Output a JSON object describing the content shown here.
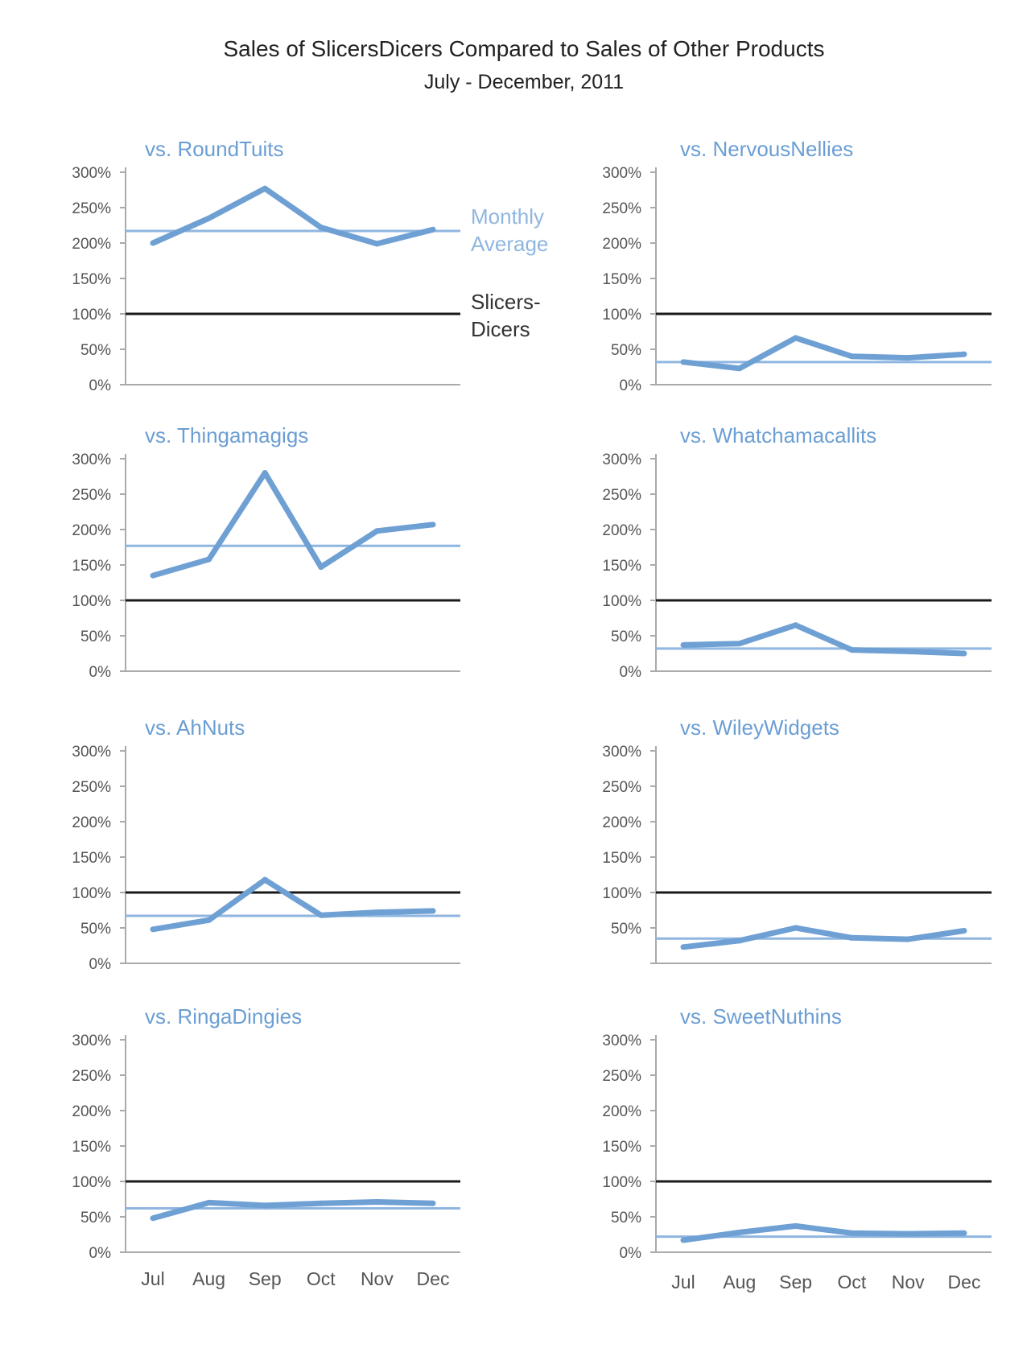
{
  "chart_data": {
    "type": "line",
    "title": "Sales of SlicersDicers Compared to Sales of Other Products",
    "subtitle": "July - December, 2011",
    "categories": [
      "Jul",
      "Aug",
      "Sep",
      "Oct",
      "Nov",
      "Dec"
    ],
    "y_ticks": [
      "0%",
      "50%",
      "100%",
      "150%",
      "200%",
      "250%",
      "300%"
    ],
    "ylim": [
      0,
      300
    ],
    "reference_line": 100,
    "legend": {
      "average_label": [
        "Monthly",
        "Average"
      ],
      "reference_label": [
        "Slicers-",
        "Dicers"
      ],
      "placement": "right of first panel"
    },
    "colors": {
      "series": "#6fa0d4",
      "average": "#8fb6e0",
      "reference": "#1a1a1a",
      "axis": "#aaaaaa",
      "title": "#6b9ed3"
    },
    "panels": [
      {
        "title": "vs. RoundTuits",
        "values": [
          200,
          235,
          277,
          222,
          199,
          219
        ],
        "average": 217
      },
      {
        "title": "vs. NervousNellies",
        "values": [
          32,
          23,
          66,
          40,
          38,
          43
        ],
        "average": 32
      },
      {
        "title": "vs. Thingamagigs",
        "values": [
          135,
          158,
          280,
          147,
          198,
          207
        ],
        "average": 177
      },
      {
        "title": "vs. Whatchamacallits",
        "values": [
          37,
          39,
          65,
          30,
          28,
          25
        ],
        "average": 32
      },
      {
        "title": "vs. AhNuts",
        "values": [
          48,
          61,
          118,
          68,
          72,
          74
        ],
        "average": 67
      },
      {
        "title": "vs. WileyWidgets",
        "values": [
          23,
          32,
          50,
          36,
          34,
          46
        ],
        "average": 35
      },
      {
        "title": "vs. RingaDingies",
        "values": [
          48,
          70,
          66,
          69,
          71,
          69
        ],
        "average": 62
      },
      {
        "title": "vs. SweetNuthins",
        "values": [
          17,
          28,
          37,
          27,
          26,
          27
        ],
        "average": 22
      }
    ],
    "month_labels_panels": [
      6,
      7
    ],
    "panel_ticks": [
      [
        "0%",
        "50%",
        "100%",
        "150%",
        "200%",
        "250%",
        "300%"
      ],
      [
        "0%",
        "50%",
        "100%",
        "150%",
        "200%",
        "250%",
        "300%"
      ],
      [
        "0%",
        "50%",
        "100%",
        "150%",
        "200%",
        "250%",
        "300%"
      ],
      [
        "0%",
        "50%",
        "100%",
        "150%",
        "200%",
        "250%",
        "300%"
      ],
      [
        "0%",
        "50%",
        "100%",
        "150%",
        "200%",
        "250%",
        "300%"
      ],
      [
        "",
        "50%",
        "100%",
        "150%",
        "200%",
        "250%",
        "300%"
      ],
      [
        "0%",
        "50%",
        "100%",
        "150%",
        "200%",
        "250%",
        "300%"
      ],
      [
        "0%",
        "50%",
        "100%",
        "150%",
        "200%",
        "250%",
        "300%"
      ]
    ]
  }
}
